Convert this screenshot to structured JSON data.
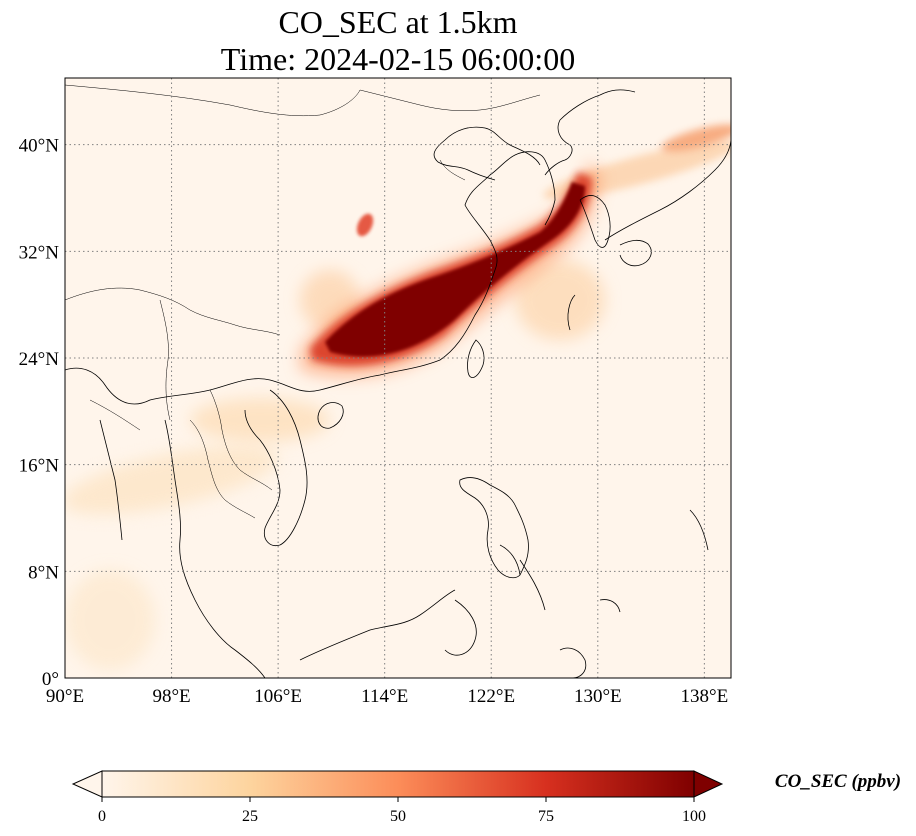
{
  "title": {
    "line1": "CO_SEC at 1.5km",
    "line2": "Time: 2024-02-15 06:00:00"
  },
  "map": {
    "projection": "PlateCarree",
    "lon_range": [
      90,
      140
    ],
    "lat_range": [
      0,
      45
    ],
    "gridlines": true,
    "x_ticks": [
      {
        "value": 90,
        "label": "90°E"
      },
      {
        "value": 98,
        "label": "98°E"
      },
      {
        "value": 106,
        "label": "106°E"
      },
      {
        "value": 114,
        "label": "114°E"
      },
      {
        "value": 122,
        "label": "122°E"
      },
      {
        "value": 130,
        "label": "130°E"
      },
      {
        "value": 138,
        "label": "138°E"
      }
    ],
    "y_ticks": [
      {
        "value": 0,
        "label": "0°"
      },
      {
        "value": 8,
        "label": "8°N"
      },
      {
        "value": 16,
        "label": "16°N"
      },
      {
        "value": 24,
        "label": "24°N"
      },
      {
        "value": 32,
        "label": "32°N"
      },
      {
        "value": 40,
        "label": "40°N"
      }
    ],
    "background_color": "#fff5eb",
    "features": "coastlines and country borders"
  },
  "colorbar": {
    "label": "CO_SEC (ppbv)",
    "colormap": "OrRd-like",
    "range": [
      0,
      100
    ],
    "extend": "both",
    "ticks": [
      {
        "value": 0,
        "label": "0"
      },
      {
        "value": 25,
        "label": "25"
      },
      {
        "value": 50,
        "label": "50"
      },
      {
        "value": 75,
        "label": "75"
      },
      {
        "value": 100,
        "label": "100"
      }
    ],
    "colors": [
      "#fff5eb",
      "#fdd49e",
      "#fc8d59",
      "#d7301f",
      "#7f0000"
    ]
  }
}
